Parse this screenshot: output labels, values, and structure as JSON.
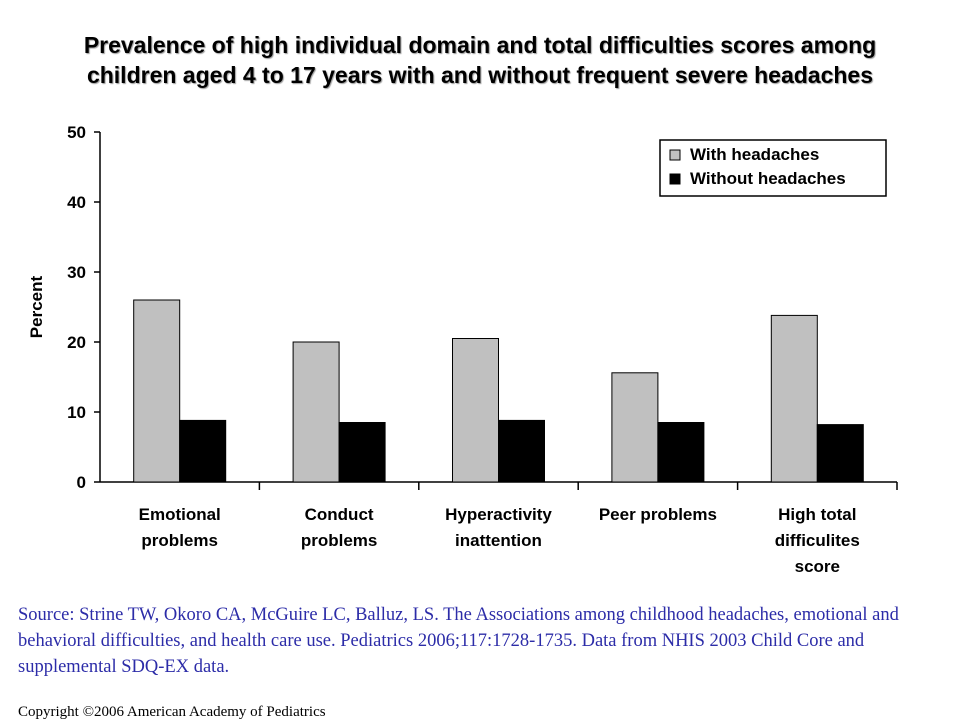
{
  "title_line1": "Prevalence of high individual domain and total difficulties scores among",
  "title_line2": "children aged 4 to 17 years with and without frequent severe headaches",
  "source": "Source: Strine TW, Okoro CA, McGuire LC, Balluz, LS. The Associations among childhood headaches, emotional and behavioral difficulties, and health care use. Pediatrics 2006;117:1728-1735. Data from NHIS 2003 Child Core and supplemental SDQ-EX data.",
  "copyright": "Copyright ©2006 American Academy of Pediatrics",
  "colors": {
    "with": "#c0c0c0",
    "without": "#000000",
    "source_text": "#2c2ca8"
  },
  "chart_data": {
    "type": "bar",
    "ylabel": "Percent",
    "ylim": [
      0,
      50
    ],
    "yticks": [
      0,
      10,
      20,
      30,
      40,
      50
    ],
    "grid": false,
    "legend_position": "top-right",
    "categories": [
      [
        "Emotional",
        "problems"
      ],
      [
        "Conduct",
        "problems"
      ],
      [
        "Hyperactivity",
        "inattention"
      ],
      [
        "Peer problems"
      ],
      [
        "High total",
        "difficulites",
        "score"
      ]
    ],
    "series": [
      {
        "name": "With headaches",
        "color": "#c0c0c0",
        "values": [
          26,
          20,
          20.5,
          15.6,
          23.8
        ]
      },
      {
        "name": "Without headaches",
        "color": "#000000",
        "values": [
          8.8,
          8.5,
          8.8,
          8.5,
          8.2
        ]
      }
    ]
  }
}
